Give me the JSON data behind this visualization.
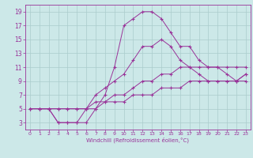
{
  "xlabel": "Windchill (Refroidissement éolien,°C)",
  "bg_color": "#cce8e8",
  "grid_color": "#aacccc",
  "line_color": "#993399",
  "xlim": [
    -0.5,
    23.5
  ],
  "ylim": [
    2,
    20
  ],
  "xticks": [
    0,
    1,
    2,
    3,
    4,
    5,
    6,
    7,
    8,
    9,
    10,
    11,
    12,
    13,
    14,
    15,
    16,
    17,
    18,
    19,
    20,
    21,
    22,
    23
  ],
  "yticks": [
    3,
    5,
    7,
    9,
    11,
    13,
    15,
    17,
    19
  ],
  "line_main_x": [
    1,
    2,
    3,
    4,
    5,
    6,
    7,
    8,
    9,
    10,
    11,
    12,
    13,
    14,
    15,
    16,
    17,
    18,
    19,
    20,
    21,
    22,
    23
  ],
  "line_main_y": [
    5,
    5,
    3,
    3,
    3,
    3,
    5,
    7,
    11,
    17,
    18,
    19,
    19,
    18,
    16,
    14,
    14,
    12,
    11,
    11,
    10,
    9,
    10
  ],
  "line_mid1_x": [
    0,
    1,
    2,
    3,
    4,
    5,
    6,
    7,
    8,
    9,
    10,
    11,
    12,
    13,
    14,
    15,
    16,
    17,
    18,
    19,
    20,
    21,
    22,
    23
  ],
  "line_mid1_y": [
    5,
    5,
    5,
    3,
    3,
    3,
    5,
    7,
    8,
    9,
    10,
    12,
    14,
    14,
    15,
    14,
    12,
    11,
    10,
    9,
    9,
    9,
    9,
    10
  ],
  "line_mid2_x": [
    0,
    1,
    2,
    3,
    4,
    5,
    6,
    7,
    8,
    9,
    10,
    11,
    12,
    13,
    14,
    15,
    16,
    17,
    18,
    19,
    20,
    21,
    22,
    23
  ],
  "line_mid2_y": [
    5,
    5,
    5,
    5,
    5,
    5,
    5,
    6,
    6,
    7,
    7,
    8,
    9,
    9,
    10,
    10,
    11,
    11,
    11,
    11,
    11,
    11,
    11,
    11
  ],
  "line_low_x": [
    0,
    1,
    2,
    3,
    4,
    5,
    6,
    7,
    8,
    9,
    10,
    11,
    12,
    13,
    14,
    15,
    16,
    17,
    18,
    19,
    20,
    21,
    22,
    23
  ],
  "line_low_y": [
    5,
    5,
    5,
    5,
    5,
    5,
    5,
    5,
    6,
    6,
    6,
    7,
    7,
    7,
    8,
    8,
    8,
    9,
    9,
    9,
    9,
    9,
    9,
    9
  ]
}
